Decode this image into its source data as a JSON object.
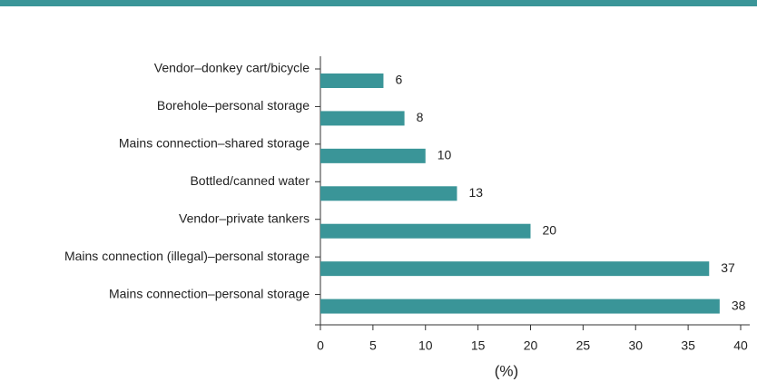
{
  "chart_data": {
    "type": "bar",
    "orientation": "horizontal",
    "categories": [
      "Vendor–donkey cart/bicycle",
      "Borehole–personal storage",
      "Mains connection–shared storage",
      "Bottled/canned water",
      "Vendor–private tankers",
      "Mains connection (illegal)–personal storage",
      "Mains connection–personal storage"
    ],
    "values": [
      6,
      8,
      10,
      13,
      20,
      37,
      38
    ],
    "color": "#3a9598",
    "xlabel": "(%)",
    "xlim": [
      0,
      40
    ],
    "xticks": [
      0,
      5,
      10,
      15,
      20,
      25,
      30,
      35,
      40
    ],
    "grid": false
  }
}
